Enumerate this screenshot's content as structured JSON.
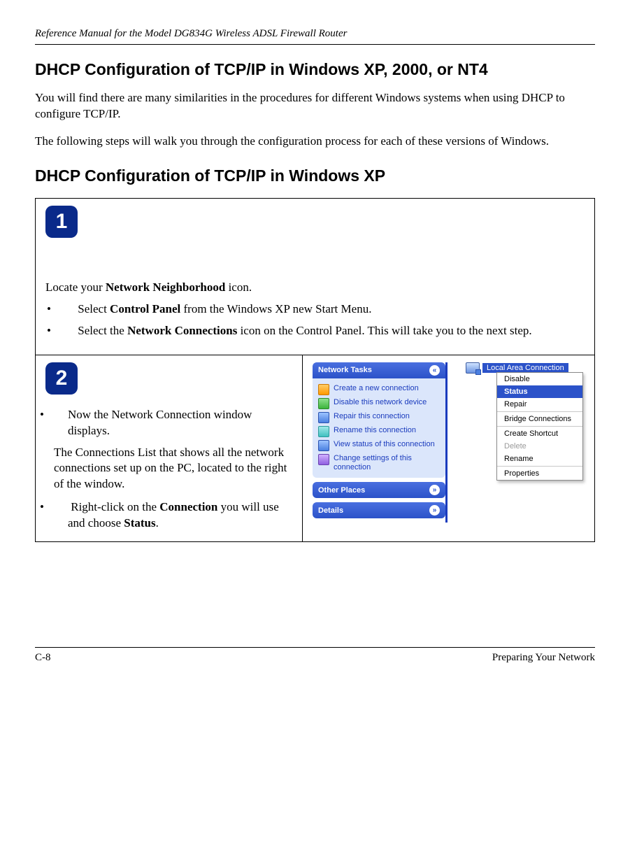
{
  "running_header": "Reference Manual for the Model DG834G Wireless ADSL Firewall Router",
  "h1": "DHCP Configuration of TCP/IP in Windows XP, 2000, or NT4",
  "intro1": "You will find there are many similarities in the procedures for different Windows systems when using DHCP to configure TCP/IP.",
  "intro2": "The following steps will walk you through the configuration process for each of these versions of Windows.",
  "h2": "DHCP Configuration of TCP/IP in Windows XP",
  "step1": {
    "badge": "1",
    "lead_pre": "Locate your ",
    "lead_bold": "Network Neighborhood",
    "lead_post": " icon.",
    "bullet_a_pre": "Select ",
    "bullet_a_bold": "Control Panel",
    "bullet_a_post": " from the Windows XP new Start Menu.",
    "bullet_b_pre": "Select the ",
    "bullet_b_bold": "Network Connections",
    "bullet_b_post": " icon on the Control Panel.  This will take you to the next step."
  },
  "step2": {
    "badge": "2",
    "bullet_a": "Now the Network Connection window displays.",
    "para": "The Connections List that shows all the network connections set up on the PC, located to the right of the window.",
    "bullet_b_pre": "Right-click on the ",
    "bullet_b_bold1": "Connection",
    "bullet_b_mid": " you will use and choose ",
    "bullet_b_bold2": "Status",
    "bullet_b_post": "."
  },
  "screenshot": {
    "colors": {
      "panel_hdr_top": "#4a6fe0",
      "panel_hdr_bot": "#2b52c9",
      "panel_body": "#dbe6fb",
      "link": "#1a3bbd",
      "sel_bg": "#2b52c9",
      "sel_fg": "#ffffff",
      "border_right": "#1a3bbd"
    },
    "panes": {
      "network_tasks": {
        "title": "Network Tasks",
        "items": [
          {
            "icon": "ic-orange",
            "label": "Create a new connection"
          },
          {
            "icon": "ic-green",
            "label": "Disable this network device"
          },
          {
            "icon": "ic-blue",
            "label": "Repair this connection"
          },
          {
            "icon": "ic-teal",
            "label": "Rename this connection"
          },
          {
            "icon": "ic-blue",
            "label": "View status of this connection"
          },
          {
            "icon": "ic-purple",
            "label": "Change settings of this connection"
          }
        ]
      },
      "other_places": {
        "title": "Other Places"
      },
      "details": {
        "title": "Details"
      }
    },
    "lac_label": "Local Area Connection",
    "context_menu": [
      {
        "label": "Disable",
        "type": "item"
      },
      {
        "label": "Status",
        "type": "sel"
      },
      {
        "label": "Repair",
        "type": "item"
      },
      {
        "type": "sep"
      },
      {
        "label": "Bridge Connections",
        "type": "item"
      },
      {
        "type": "sep"
      },
      {
        "label": "Create Shortcut",
        "type": "item"
      },
      {
        "label": "Delete",
        "type": "disabled"
      },
      {
        "label": "Rename",
        "type": "item"
      },
      {
        "type": "sep"
      },
      {
        "label": "Properties",
        "type": "item"
      }
    ]
  },
  "footer": {
    "left": "C-8",
    "right": "Preparing Your Network"
  }
}
